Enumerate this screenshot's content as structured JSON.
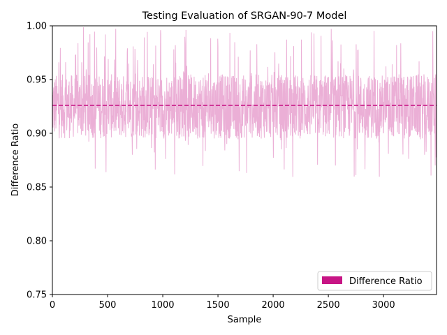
{
  "chart_data": {
    "type": "line",
    "title": "Testing Evaluation of SRGAN-90-7 Model",
    "xlabel": "Sample",
    "ylabel": "Difference Ratio",
    "xlim": [
      0,
      3480
    ],
    "ylim": [
      0.75,
      1.0
    ],
    "x_ticks": [
      0,
      500,
      1000,
      1500,
      2000,
      2500,
      3000
    ],
    "y_ticks": [
      0.75,
      0.8,
      0.85,
      0.9,
      0.95,
      1.0
    ],
    "x_tick_labels": [
      "0",
      "500",
      "1000",
      "1500",
      "2000",
      "2500",
      "3000"
    ],
    "y_tick_labels": [
      "0.75",
      "0.80",
      "0.85",
      "0.90",
      "0.95",
      "1.00"
    ],
    "grid": false,
    "legend": {
      "placement": "lower-right",
      "entries": [
        "Difference Ratio"
      ]
    },
    "series": [
      {
        "name": "Difference Ratio",
        "kind": "noisy-line",
        "sample_count": 3480,
        "typical_range": [
          0.895,
          0.955
        ],
        "min": 0.859,
        "max": 0.999,
        "color": "#EBAFD6"
      }
    ],
    "mean_line": {
      "value": 0.926,
      "style": "dashed",
      "color": "#C71585"
    },
    "colors": {
      "series": "#EBAFD6",
      "mean": "#C71585",
      "legend_patch": "#C71585"
    }
  }
}
